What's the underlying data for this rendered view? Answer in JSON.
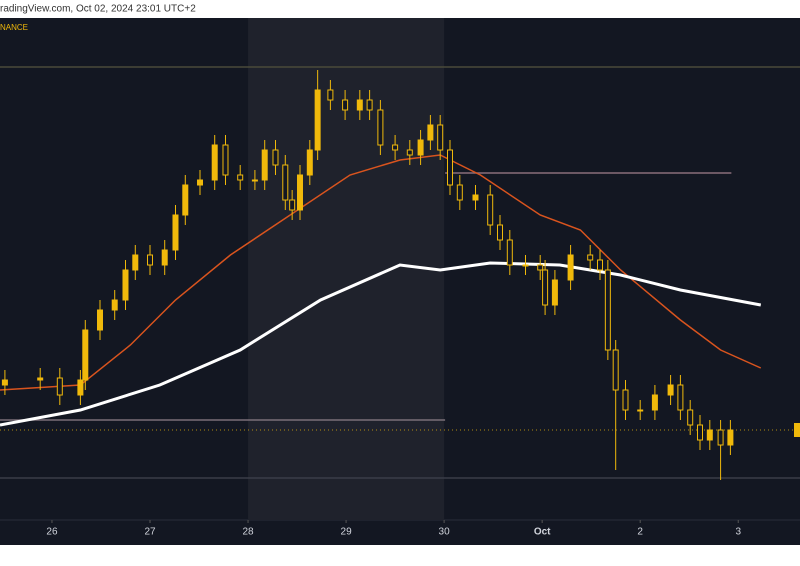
{
  "chart_data": {
    "type": "candlestick",
    "header": "radingView.com, Oct 02, 2024 23:01 UTC+2",
    "exchange": "NANCE",
    "color": "#f0b90b",
    "xlim": [
      25.47,
      33.63
    ],
    "ylim": [
      0,
      100
    ],
    "xticks": [
      26,
      27,
      28,
      29,
      30,
      {
        "value": 31,
        "label": "Oct"
      },
      {
        "value": 32,
        "label": "2"
      },
      {
        "value": 33,
        "label": "3"
      }
    ],
    "highlight": [
      28,
      30
    ],
    "x": [
      25.52,
      25.88,
      26.08,
      26.29,
      26.34,
      26.49,
      26.64,
      26.75,
      26.85,
      27.0,
      27.15,
      27.26,
      27.36,
      27.51,
      27.66,
      27.77,
      27.92,
      28.07,
      28.17,
      28.28,
      28.38,
      28.45,
      28.53,
      28.63,
      28.71,
      28.84,
      28.99,
      29.14,
      29.24,
      29.35,
      29.5,
      29.65,
      29.76,
      29.86,
      29.96,
      30.06,
      30.16,
      30.32,
      30.47,
      30.57,
      30.67,
      30.83,
      30.98,
      31.03,
      31.13,
      31.29,
      31.49,
      31.59,
      31.67,
      31.75,
      31.85,
      32.0,
      32.15,
      32.31,
      32.41,
      32.51,
      32.61,
      32.71,
      32.82,
      32.92
    ],
    "open": [
      27,
      28,
      28.4,
      25,
      28,
      38,
      42,
      44,
      50,
      53,
      51,
      54,
      61,
      67,
      68,
      75,
      69,
      68,
      68,
      74,
      71,
      64,
      62,
      69,
      74,
      86,
      84,
      82,
      84,
      82,
      75,
      74,
      73,
      76,
      79,
      74,
      67,
      64,
      65,
      59,
      56,
      51,
      51,
      50,
      43,
      48,
      53,
      52,
      50,
      34,
      26,
      22,
      22,
      25,
      27,
      22,
      19,
      16,
      18,
      15
    ],
    "high": [
      30,
      30.4,
      30.4,
      30,
      40,
      44,
      46,
      52,
      55,
      55,
      56,
      63,
      69,
      70,
      77,
      77,
      71,
      70,
      76,
      76,
      73,
      66,
      71,
      76,
      90,
      88,
      86,
      86,
      86,
      84,
      77,
      76,
      78,
      81,
      81,
      76,
      69,
      67,
      67,
      61,
      58,
      53,
      53,
      52,
      50,
      55,
      55,
      54,
      52,
      36,
      28,
      24,
      27,
      29,
      29,
      24,
      21,
      20,
      20,
      20
    ],
    "low": [
      25,
      26,
      23,
      23,
      26,
      36,
      40,
      42,
      48,
      49,
      49,
      52,
      59,
      65,
      66,
      67,
      66,
      66,
      66,
      69,
      62,
      60,
      60,
      67,
      72,
      82,
      80,
      80,
      80,
      73,
      72,
      71,
      71,
      74,
      72,
      65,
      62,
      62,
      57,
      54,
      49,
      49,
      48,
      41,
      41,
      46,
      50,
      48,
      32,
      10,
      20,
      20,
      20,
      23,
      20,
      17,
      14,
      14,
      8,
      13
    ],
    "close": [
      28,
      28.4,
      25,
      28,
      38,
      42,
      44,
      50,
      53,
      51,
      54,
      61,
      67,
      68,
      75,
      69,
      68,
      68,
      74,
      71,
      64,
      62,
      69,
      74,
      86,
      84,
      82,
      84,
      82,
      75,
      74,
      73,
      76,
      79,
      74,
      67,
      64,
      65,
      59,
      56,
      51,
      51,
      50,
      43,
      48,
      53,
      52,
      50,
      34,
      26,
      22,
      22,
      25,
      27,
      22,
      19,
      16,
      18,
      15,
      18
    ],
    "overlays": [
      {
        "color": "#d9541e",
        "width": 1.5,
        "x": [
          25.47,
          26.29,
          26.8,
          27.26,
          27.82,
          28.43,
          29.04,
          29.55,
          29.96,
          30.37,
          30.98,
          31.39,
          31.8,
          32.41,
          32.82,
          33.23
        ],
        "values": [
          26,
          27,
          35,
          44,
          53,
          61,
          69,
          72,
          73,
          69,
          61,
          58,
          50,
          40,
          34,
          30.4
        ]
      },
      {
        "color": "#ffffff",
        "width": 3,
        "x": [
          25.47,
          26.29,
          27.1,
          27.92,
          28.74,
          29.55,
          29.96,
          30.47,
          31.18,
          31.8,
          32.41,
          33.23
        ],
        "values": [
          19,
          22,
          27,
          34,
          44,
          51,
          50,
          51.4,
          51,
          49,
          46,
          43
        ]
      }
    ],
    "levels": [
      {
        "value": 69.4,
        "from": 30.01,
        "to": 32.93,
        "color": "#8a6e7a"
      },
      {
        "value": 20,
        "from": 25.47,
        "to": 30.01,
        "color": "#7a6f78"
      },
      {
        "value": 90.6,
        "from": 25.47,
        "to": 33.63,
        "color": "#4a4a3a"
      },
      {
        "value": 8.4,
        "from": 25.47,
        "to": 33.63,
        "color": "#3a3d48"
      }
    ],
    "last_price": 18
  }
}
